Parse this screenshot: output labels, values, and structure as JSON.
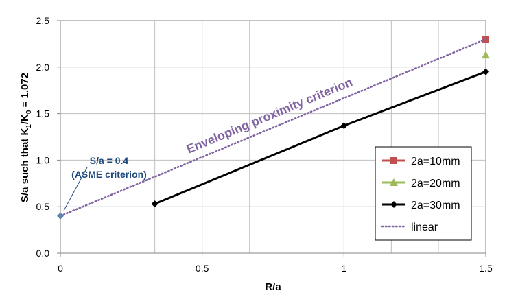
{
  "chart_data": {
    "type": "line",
    "xlabel": "R/a",
    "ylabel": {
      "parts": [
        {
          "t": "S/a such that K",
          "sub": false
        },
        {
          "t": "1",
          "sub": true
        },
        {
          "t": "/K",
          "sub": false
        },
        {
          "t": "0",
          "sub": true
        },
        {
          "t": " = 1.072",
          "sub": false
        }
      ]
    },
    "xlim": [
      0,
      1.5
    ],
    "ylim": [
      0,
      2.5
    ],
    "x_ticks": [
      {
        "v": 0,
        "label": "0"
      },
      {
        "v": 0.5,
        "label": "0.5"
      },
      {
        "v": 1,
        "label": "1"
      },
      {
        "v": 1.5,
        "label": "1.5"
      }
    ],
    "y_ticks": [
      {
        "v": 0,
        "label": "0.0"
      },
      {
        "v": 0.5,
        "label": "0.5"
      },
      {
        "v": 1.0,
        "label": "1.0"
      },
      {
        "v": 1.5,
        "label": "1.5"
      },
      {
        "v": 2.0,
        "label": "2.0"
      },
      {
        "v": 2.5,
        "label": "2.5"
      }
    ],
    "x_gridlines": [
      0.333,
      0.5,
      0.667,
      1.0,
      1.167,
      1.333
    ],
    "y_gridlines": [
      0.5,
      1.0,
      1.5,
      2.0
    ],
    "series": [
      {
        "name": "2a=10mm",
        "color": "#c0504d",
        "marker": "square",
        "line": false,
        "points": [
          [
            1.5,
            2.3
          ]
        ]
      },
      {
        "name": "2a=20mm",
        "color": "#9bbb59",
        "marker": "triangle",
        "line": false,
        "points": [
          [
            1.5,
            2.13
          ]
        ]
      },
      {
        "name": "2a=30mm",
        "color": "#000000",
        "marker": "diamond",
        "line": true,
        "points": [
          [
            0.333,
            0.53
          ],
          [
            1.0,
            1.37
          ],
          [
            1.5,
            1.95
          ]
        ]
      },
      {
        "name": "linear",
        "color": "#8064a2",
        "marker": "none",
        "line": true,
        "dotted": true,
        "points": [
          [
            0,
            0.4
          ],
          [
            1.5,
            2.3
          ]
        ]
      }
    ],
    "extra_points": [
      {
        "name": "asme-point",
        "color": "#4f81bd",
        "marker": "diamond",
        "x": 0,
        "y": 0.4
      }
    ],
    "annotations": [
      {
        "id": "asme-line1",
        "text": "S/a = 0.4",
        "color": "#1f497d"
      },
      {
        "id": "asme-line2",
        "text": "(ASME criterion)",
        "color": "#1f497d"
      },
      {
        "id": "enveloping",
        "text": "Enveloping proximity criterion",
        "color": "#8064a2"
      }
    ],
    "legend_position": "bottom-right",
    "grid": true
  }
}
